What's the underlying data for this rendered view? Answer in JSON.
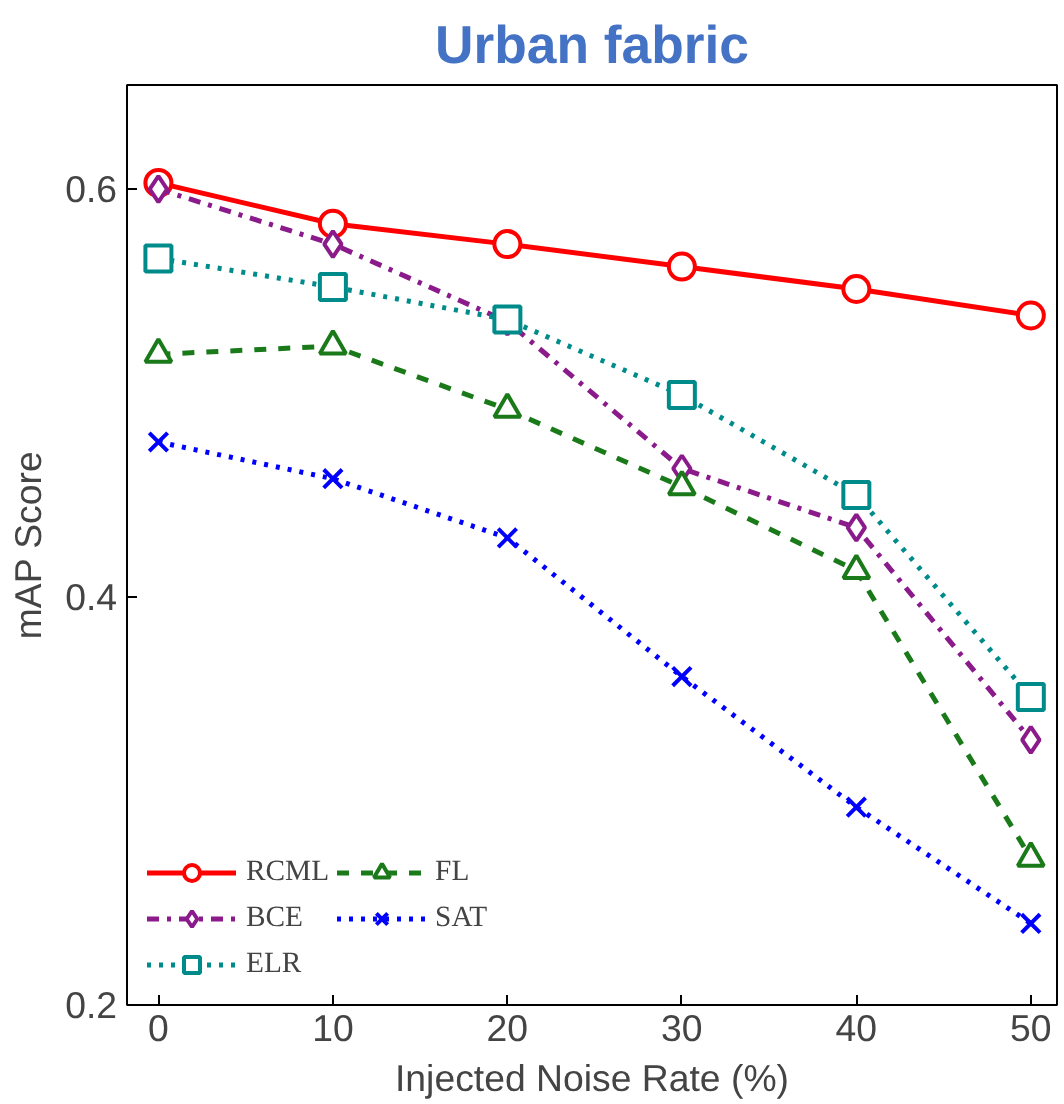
{
  "chart_data": {
    "type": "line",
    "title": "Urban fabric",
    "xlabel": "Injected Noise Rate (%)",
    "ylabel": "mAP Score",
    "x": [
      0,
      10,
      20,
      30,
      40,
      50
    ],
    "xlim": [
      -1.8,
      51.5
    ],
    "xticks": [
      0,
      10,
      20,
      30,
      40,
      50
    ],
    "ylim": [
      0.2,
      0.651
    ],
    "yticks": [
      0.2,
      0.4,
      0.6
    ],
    "grid": false,
    "legend": "bottom left",
    "series": [
      {
        "name": "RCML",
        "color": "#ff0000",
        "marker": "circle",
        "line_style": "solid",
        "values": [
          0.603,
          0.583,
          0.573,
          0.562,
          0.551,
          0.538
        ]
      },
      {
        "name": "BCE",
        "color": "#8b1a8b",
        "marker": "diamond",
        "line_style": "dashdot",
        "values": [
          0.6,
          0.573,
          0.535,
          0.463,
          0.434,
          0.33
        ]
      },
      {
        "name": "ELR",
        "color": "#008b8b",
        "marker": "square",
        "line_style": "dotted",
        "values": [
          0.566,
          0.552,
          0.536,
          0.499,
          0.45,
          0.351
        ]
      },
      {
        "name": "FL",
        "color": "#1a7a1a",
        "marker": "triangle",
        "line_style": "dashed",
        "values": [
          0.519,
          0.523,
          0.492,
          0.454,
          0.413,
          0.272
        ]
      },
      {
        "name": "SAT",
        "color": "#0000ff",
        "marker": "cross",
        "line_style": "dotted",
        "values": [
          0.476,
          0.458,
          0.429,
          0.361,
          0.297,
          0.24
        ]
      }
    ]
  }
}
